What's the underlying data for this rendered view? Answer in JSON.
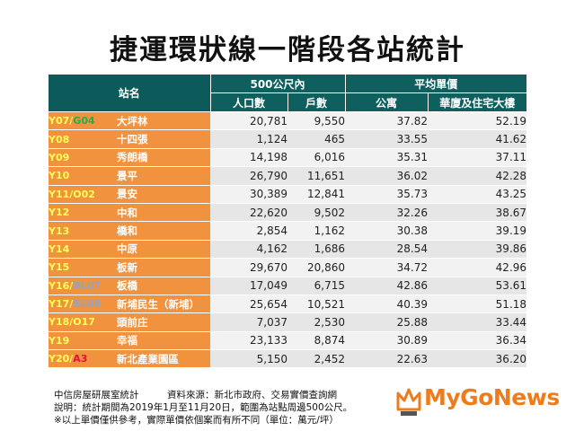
{
  "title": "捷運環狀線一階段各站統計",
  "header": {
    "station_name": "站名",
    "within_500m": "500公尺內",
    "population": "人口數",
    "households": "戶數",
    "avg_price": "平均單價",
    "apartment": "公寓",
    "building": "華廈及住宅大樓"
  },
  "rows": [
    {
      "code_a": "Y07/",
      "code_b": "G04",
      "code_b_color": "#21b04a",
      "name": "大坪林",
      "population": "20,781",
      "households": "9,550",
      "apartment": "37.82",
      "building": "52.19"
    },
    {
      "code_a": "Y08",
      "code_b": "",
      "code_b_color": "",
      "name": "十四張",
      "population": "1,124",
      "households": "465",
      "apartment": "33.55",
      "building": "41.62"
    },
    {
      "code_a": "Y09",
      "code_b": "",
      "code_b_color": "",
      "name": "秀朗橋",
      "population": "14,198",
      "households": "6,016",
      "apartment": "35.31",
      "building": "37.11"
    },
    {
      "code_a": "Y10",
      "code_b": "",
      "code_b_color": "",
      "name": "景平",
      "population": "26,790",
      "households": "11,651",
      "apartment": "36.02",
      "building": "42.28"
    },
    {
      "code_a": "Y11/O02",
      "code_b": "",
      "code_b_color": "",
      "name": "景安",
      "population": "30,389",
      "households": "12,841",
      "apartment": "35.73",
      "building": "43.25"
    },
    {
      "code_a": "Y12",
      "code_b": "",
      "code_b_color": "",
      "name": "中和",
      "population": "22,620",
      "households": "9,502",
      "apartment": "32.26",
      "building": "38.67"
    },
    {
      "code_a": "Y13",
      "code_b": "",
      "code_b_color": "",
      "name": "橋和",
      "population": "2,854",
      "households": "1,162",
      "apartment": "30.38",
      "building": "39.19"
    },
    {
      "code_a": "Y14",
      "code_b": "",
      "code_b_color": "",
      "name": "中原",
      "population": "4,162",
      "households": "1,686",
      "apartment": "28.54",
      "building": "39.86"
    },
    {
      "code_a": "Y15",
      "code_b": "",
      "code_b_color": "",
      "name": "板新",
      "population": "29,670",
      "households": "20,860",
      "apartment": "34.72",
      "building": "42.96"
    },
    {
      "code_a": "Y16/",
      "code_b": "BL07",
      "code_b_color": "#8ea6c7",
      "name": "板橋",
      "population": "17,049",
      "households": "6,715",
      "apartment": "42.86",
      "building": "53.61"
    },
    {
      "code_a": "Y17/",
      "code_b": "BL08",
      "code_b_color": "#8ea6c7",
      "name": "新埔民生（新埔）",
      "population": "25,654",
      "households": "10,521",
      "apartment": "40.39",
      "building": "51.18"
    },
    {
      "code_a": "Y18/O17",
      "code_b": "",
      "code_b_color": "",
      "name": "頭前庄",
      "population": "7,037",
      "households": "2,530",
      "apartment": "25.88",
      "building": "33.44"
    },
    {
      "code_a": "Y19",
      "code_b": "",
      "code_b_color": "",
      "name": "幸福",
      "population": "23,133",
      "households": "8,874",
      "apartment": "30.89",
      "building": "36.34"
    },
    {
      "code_a": "Y20/",
      "code_b": "A3",
      "code_b_color": "#e0133a",
      "name": "新北產業園區",
      "population": "5,150",
      "households": "2,452",
      "apartment": "22.63",
      "building": "36.20"
    }
  ],
  "notes": {
    "line1": "中信房屋研展室統計　　　資料來源：新北市政府、交易實價查詢網",
    "line2": "說明：統計期間為2019年1月至11月20日，範圍為站點周邊500公尺。",
    "line3": "※以上單價僅供參考，實際單價依個案而有所不同（單位：萬元/坪）"
  },
  "logo": {
    "text": "MyGoNews",
    "mark_icon": "mygonews-crown-icon",
    "color": "#ec7c1c"
  }
}
